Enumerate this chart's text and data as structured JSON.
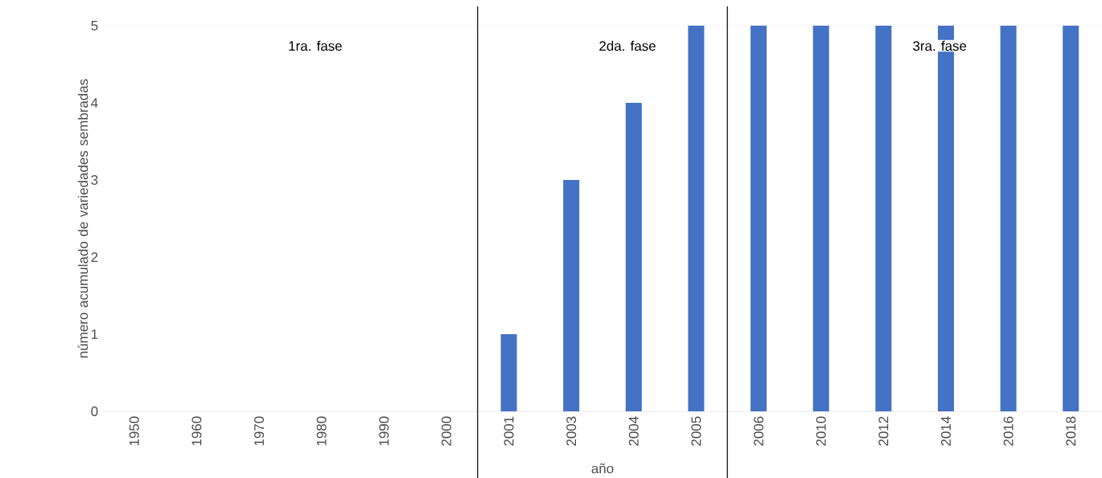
{
  "chart_data": {
    "type": "bar",
    "xlabel": "año",
    "ylabel": "número acumulado de variedades sembradas",
    "categories": [
      "1950",
      "1960",
      "1970",
      "1980",
      "1990",
      "2000",
      "2001",
      "2003",
      "2004",
      "2005",
      "2006",
      "2010",
      "2012",
      "2014",
      "2016",
      "2018"
    ],
    "values": [
      0,
      0,
      0,
      0,
      0,
      0,
      1,
      3,
      4,
      5,
      5,
      5,
      5,
      5,
      5,
      5
    ],
    "color": "#4472c4",
    "ylim": [
      0,
      5
    ],
    "yticks": [
      0,
      1,
      2,
      3,
      4,
      5
    ],
    "grid": "y",
    "bands": [
      {
        "axis": "x",
        "from": "1950",
        "to": "2000",
        "label": "1ra. fase",
        "color": "#ffffff"
      },
      {
        "axis": "x",
        "from": "2001",
        "to": "2005",
        "label": "2da. fase",
        "color": "#ffffff"
      },
      {
        "axis": "x",
        "from": "2006",
        "to": "2018",
        "label": "3ra. fase",
        "color": "#ffffff"
      }
    ]
  }
}
